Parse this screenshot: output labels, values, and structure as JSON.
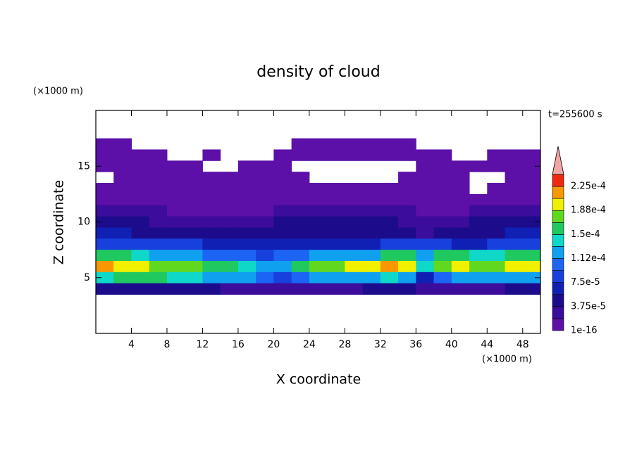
{
  "chart_data": {
    "type": "contour",
    "title": "density of cloud",
    "xlabel": "X coordinate",
    "ylabel": "Z coordinate",
    "xunit": "(×1000 m)",
    "yunit": "(×1000 m)",
    "annotation": "t=255600 s",
    "xlim": [
      0,
      50
    ],
    "xticks": [
      4,
      8,
      12,
      16,
      20,
      24,
      28,
      32,
      36,
      40,
      44,
      48
    ],
    "ylim": [
      0,
      20
    ],
    "yticks": [
      5,
      10,
      15
    ],
    "x": [
      1,
      3,
      5,
      7,
      9,
      11,
      13,
      15,
      17,
      19,
      21,
      23,
      25,
      27,
      29,
      31,
      33,
      35,
      37,
      39,
      41,
      43,
      45,
      47,
      49
    ],
    "y": [
      17,
      16,
      15,
      14,
      13,
      12,
      11,
      10,
      9,
      8,
      7,
      6,
      5,
      4
    ],
    "values": [
      [
        5e-06,
        5e-06,
        null,
        null,
        null,
        null,
        null,
        null,
        null,
        null,
        null,
        5e-06,
        5e-06,
        5e-06,
        5e-06,
        5e-06,
        5e-06,
        5e-06,
        null,
        null,
        null,
        null,
        null,
        null,
        null
      ],
      [
        5e-06,
        5e-06,
        5e-06,
        5e-06,
        null,
        null,
        5e-06,
        null,
        null,
        null,
        5e-06,
        5e-06,
        5e-06,
        5e-06,
        5e-06,
        5e-06,
        5e-06,
        5e-06,
        5e-06,
        5e-06,
        null,
        null,
        5e-06,
        5e-06,
        5e-06
      ],
      [
        5e-06,
        5e-06,
        5e-06,
        5e-06,
        5e-06,
        5e-06,
        null,
        null,
        5e-06,
        5e-06,
        5e-06,
        null,
        null,
        null,
        null,
        null,
        null,
        null,
        5e-06,
        5e-06,
        5e-06,
        5e-06,
        5e-06,
        5e-06,
        5e-06
      ],
      [
        null,
        5e-06,
        5e-06,
        5e-06,
        5e-06,
        5e-06,
        5e-06,
        5e-06,
        5e-06,
        5e-06,
        5e-06,
        5e-06,
        null,
        null,
        null,
        null,
        null,
        5e-06,
        5e-06,
        5e-06,
        5e-06,
        null,
        null,
        5e-06,
        5e-06
      ],
      [
        5e-06,
        5e-06,
        5e-06,
        5e-06,
        5e-06,
        5e-06,
        5e-06,
        5e-06,
        5e-06,
        5e-06,
        5e-06,
        5e-06,
        5e-06,
        5e-06,
        5e-06,
        5e-06,
        5e-06,
        5e-06,
        5e-06,
        5e-06,
        5e-06,
        null,
        5e-06,
        5e-06,
        5e-06
      ],
      [
        1.2e-05,
        1e-05,
        8e-06,
        8e-06,
        8e-06,
        8e-06,
        8e-06,
        8e-06,
        8e-06,
        8e-06,
        8e-06,
        8e-06,
        8e-06,
        8e-06,
        8e-06,
        8e-06,
        8e-06,
        8e-06,
        8e-06,
        8e-06,
        8e-06,
        8e-06,
        1e-05,
        1.2e-05,
        1.5e-05
      ],
      [
        2.5e-05,
        2.2e-05,
        2e-05,
        2e-05,
        1.8e-05,
        1.8e-05,
        1.5e-05,
        1.5e-05,
        1.5e-05,
        1.8e-05,
        2e-05,
        2e-05,
        2e-05,
        2.2e-05,
        2.2e-05,
        2e-05,
        2e-05,
        2e-05,
        1.5e-05,
        1.5e-05,
        1.8e-05,
        2e-05,
        2.2e-05,
        2.5e-05,
        2.8e-05
      ],
      [
        4e-05,
        4e-05,
        3.8e-05,
        3.5e-05,
        3.2e-05,
        3e-05,
        2.8e-05,
        2.5e-05,
        3e-05,
        3.5e-05,
        4e-05,
        4.5e-05,
        5e-05,
        5.5e-05,
        5e-05,
        4.5e-05,
        4e-05,
        3e-05,
        2.5e-05,
        3e-05,
        3.5e-05,
        3.8e-05,
        4e-05,
        4.2e-05,
        4.5e-05
      ],
      [
        6e-05,
        6e-05,
        5.5e-05,
        5.5e-05,
        5e-05,
        4.5e-05,
        4e-05,
        3.8e-05,
        4e-05,
        4.5e-05,
        5e-05,
        5e-05,
        5.5e-05,
        5.5e-05,
        5e-05,
        5e-05,
        4.5e-05,
        4e-05,
        3.5e-05,
        4.5e-05,
        5e-05,
        5.5e-05,
        5.5e-05,
        6e-05,
        6e-05
      ],
      [
        8e-05,
        8e-05,
        8e-05,
        7.5e-05,
        7.5e-05,
        8e-05,
        7e-05,
        6.5e-05,
        6e-05,
        6e-05,
        6.5e-05,
        6.5e-05,
        6e-05,
        6e-05,
        6.5e-05,
        7e-05,
        8e-05,
        9e-05,
        8e-05,
        7.5e-05,
        7e-05,
        7e-05,
        7.5e-05,
        8e-05,
        8e-05
      ],
      [
        0.00016,
        0.00015,
        0.00014,
        0.00013,
        0.00013,
        0.00012,
        0.00011,
        0.0001,
        9.5e-05,
        9e-05,
        9.5e-05,
        0.00011,
        0.00012,
        0.00012,
        0.00012,
        0.00013,
        0.00015,
        0.00016,
        0.00013,
        0.00015,
        0.00015,
        0.00014,
        0.00014,
        0.00015,
        0.00016
      ],
      [
        0.00021,
        0.0002,
        0.00019,
        0.00018,
        0.00018,
        0.00017,
        0.00016,
        0.00015,
        0.00014,
        0.00013,
        0.00012,
        0.00016,
        0.00018,
        0.00018,
        0.00019,
        0.00019,
        0.00021,
        0.0002,
        0.00014,
        0.00018,
        0.00019,
        0.00018,
        0.00018,
        0.00019,
        0.0002
      ],
      [
        0.00014,
        0.00015,
        0.00015,
        0.00015,
        0.00014,
        0.00014,
        0.00013,
        0.00013,
        0.00012,
        0.0001,
        8e-05,
        0.0001,
        0.00012,
        0.00012,
        0.00013,
        0.00013,
        0.00014,
        0.00013,
        7e-05,
        0.0001,
        0.00012,
        0.00012,
        0.00012,
        0.00013,
        0.00013
      ],
      [
        4e-05,
        4e-05,
        4.5e-05,
        4e-05,
        4e-05,
        4e-05,
        4e-05,
        3.5e-05,
        3e-05,
        3e-05,
        3e-05,
        3e-05,
        3.5e-05,
        3.5e-05,
        3.5e-05,
        4e-05,
        4e-05,
        4e-05,
        3.5e-05,
        3e-05,
        3e-05,
        3.5e-05,
        3.5e-05,
        4e-05,
        4e-05
      ]
    ],
    "colorbar": {
      "levels": [
        1e-16,
        1.875e-05,
        3.75e-05,
        5.625e-05,
        7.5e-05,
        9.375e-05,
        0.0001125,
        0.00013125,
        0.00015,
        0.00016875,
        0.0001875,
        0.00020625,
        0.000225,
        0.00024375
      ],
      "colors": [
        "#5c10a8",
        "#3c0c9c",
        "#1c0c8c",
        "#1020b4",
        "#1840dc",
        "#1c64f4",
        "#10a0f0",
        "#10d8c8",
        "#20c860",
        "#60d820",
        "#f0f000",
        "#f89800",
        "#f02810"
      ],
      "over_color": "#f4a4a4",
      "ticks": [
        1e-16,
        {
          "value": 3.75e-05,
          "label": "3.75e-5"
        },
        {
          "value": 7.5e-05,
          "label": "7.5e-5"
        },
        {
          "value": 0.0001125,
          "label": "1.12e-4"
        },
        {
          "value": 0.00015,
          "label": "1.5e-4"
        },
        {
          "value": 0.0001875,
          "label": "1.88e-4"
        },
        {
          "value": 0.000225,
          "label": "2.25e-4"
        }
      ]
    }
  }
}
